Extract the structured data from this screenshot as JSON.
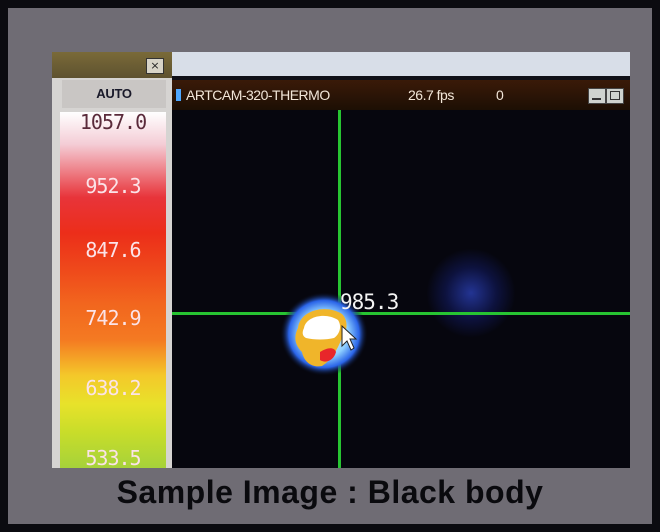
{
  "palette": {
    "close_glyph": "×",
    "mode": "AUTO",
    "scale_labels": [
      "1057.0",
      "952.3",
      "847.6",
      "742.9",
      "638.2",
      "533.5"
    ]
  },
  "thermal_window": {
    "title": "ARTCAM-320-THERMO",
    "fps": "26.7 fps",
    "count": "0",
    "readout": "985.3"
  },
  "caption": "Sample Image : Black body",
  "colors": {
    "frame": "#6f6c74",
    "crosshair": "#27c432",
    "titlebar": "#2a1306",
    "scale_top": "#ffffff",
    "scale_mid": "#ec2e1a",
    "scale_bottom": "#a6d23a"
  },
  "icons": [
    "close-icon",
    "minimize-icon",
    "maximize-icon",
    "mouse-cursor-icon"
  ]
}
